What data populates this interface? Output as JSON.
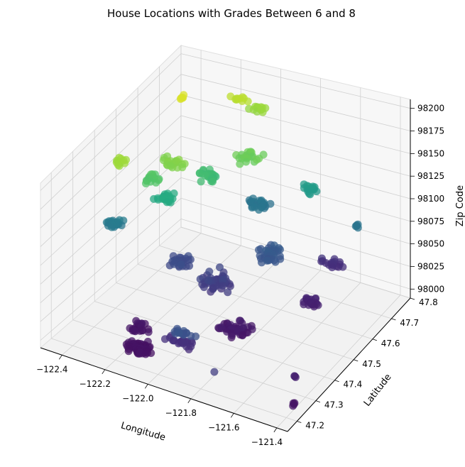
{
  "chart_data": {
    "type": "scatter",
    "projection": "3d",
    "title": "House Locations with Grades Between 6 and 8",
    "xlabel": "Longitude",
    "ylabel": "Latitude",
    "zlabel": "Zip Code",
    "xlim": [
      -122.5,
      -121.35
    ],
    "ylim": [
      47.15,
      47.8
    ],
    "zlim": [
      97990,
      98210
    ],
    "x_ticks": [
      "−122.4",
      "−122.2",
      "−122.0",
      "−121.8",
      "−121.6",
      "−121.4"
    ],
    "y_ticks": [
      "47.2",
      "47.3",
      "47.4",
      "47.5",
      "47.6",
      "47.7",
      "47.8"
    ],
    "z_ticks": [
      "98000",
      "98025",
      "98050",
      "98075",
      "98100",
      "98125",
      "98150",
      "98175",
      "98200"
    ],
    "grid": true,
    "colormap": "viridis",
    "color_by": "zip code",
    "colors": {
      "low": "#440154",
      "mid": "#21918c",
      "high": "#fde725"
    },
    "clusters": [
      {
        "x": -122.33,
        "y": 47.64,
        "z": 98198,
        "n": 6,
        "sx": 0.02,
        "sy": 0.02,
        "sz": 2
      },
      {
        "x": -122.13,
        "y": 47.72,
        "z": 98188,
        "n": 10,
        "sx": 0.06,
        "sy": 0.02,
        "sz": 3
      },
      {
        "x": -122.05,
        "y": 47.74,
        "z": 98176,
        "n": 14,
        "sx": 0.06,
        "sy": 0.02,
        "sz": 3
      },
      {
        "x": -122.38,
        "y": 47.4,
        "z": 98178,
        "n": 12,
        "sx": 0.05,
        "sy": 0.02,
        "sz": 2
      },
      {
        "x": -122.2,
        "y": 47.48,
        "z": 98168,
        "n": 22,
        "sx": 0.08,
        "sy": 0.03,
        "sz": 4
      },
      {
        "x": -122.28,
        "y": 47.45,
        "z": 98150,
        "n": 18,
        "sx": 0.05,
        "sy": 0.03,
        "sz": 4
      },
      {
        "x": -121.95,
        "y": 47.6,
        "z": 98160,
        "n": 22,
        "sx": 0.06,
        "sy": 0.04,
        "sz": 5
      },
      {
        "x": -122.1,
        "y": 47.55,
        "z": 98140,
        "n": 26,
        "sx": 0.08,
        "sy": 0.04,
        "sz": 5
      },
      {
        "x": -122.22,
        "y": 47.47,
        "z": 98125,
        "n": 22,
        "sx": 0.07,
        "sy": 0.03,
        "sz": 4
      },
      {
        "x": -121.75,
        "y": 47.7,
        "z": 98110,
        "n": 18,
        "sx": 0.06,
        "sy": 0.02,
        "sz": 3
      },
      {
        "x": -122.45,
        "y": 47.45,
        "z": 98080,
        "n": 24,
        "sx": 0.06,
        "sy": 0.03,
        "sz": 5
      },
      {
        "x": -122.0,
        "y": 47.7,
        "z": 98075,
        "n": 28,
        "sx": 0.08,
        "sy": 0.03,
        "sz": 4
      },
      {
        "x": -121.85,
        "y": 47.6,
        "z": 98050,
        "n": 36,
        "sx": 0.08,
        "sy": 0.05,
        "sz": 8
      },
      {
        "x": -122.2,
        "y": 47.5,
        "z": 98040,
        "n": 28,
        "sx": 0.07,
        "sy": 0.04,
        "sz": 6
      },
      {
        "x": -122.02,
        "y": 47.5,
        "z": 98030,
        "n": 44,
        "sx": 0.1,
        "sy": 0.06,
        "sz": 10
      },
      {
        "x": -121.68,
        "y": 47.74,
        "z": 98020,
        "n": 18,
        "sx": 0.08,
        "sy": 0.02,
        "sz": 6
      },
      {
        "x": -121.65,
        "y": 47.6,
        "z": 98010,
        "n": 22,
        "sx": 0.06,
        "sy": 0.03,
        "sz": 5
      },
      {
        "x": -121.85,
        "y": 47.42,
        "z": 98005,
        "n": 44,
        "sx": 0.1,
        "sy": 0.05,
        "sz": 6
      },
      {
        "x": -122.2,
        "y": 47.32,
        "z": 98003,
        "n": 26,
        "sx": 0.06,
        "sy": 0.03,
        "sz": 3
      },
      {
        "x": -122.14,
        "y": 47.25,
        "z": 98001,
        "n": 60,
        "sx": 0.08,
        "sy": 0.04,
        "sz": 2
      },
      {
        "x": -121.95,
        "y": 47.26,
        "z": 98020,
        "n": 22,
        "sx": 0.08,
        "sy": 0.03,
        "sz": 5
      },
      {
        "x": -121.9,
        "y": 47.22,
        "z": 98045,
        "n": 16,
        "sx": 0.06,
        "sy": 0.02,
        "sz": 4
      },
      {
        "x": -121.55,
        "y": 47.72,
        "z": 98075,
        "n": 5,
        "sx": 0.02,
        "sy": 0.02,
        "sz": 2
      },
      {
        "x": -121.45,
        "y": 47.3,
        "z": 98010,
        "n": 3,
        "sx": 0.01,
        "sy": 0.01,
        "sz": 1
      },
      {
        "x": -121.38,
        "y": 47.22,
        "z": 98002,
        "n": 4,
        "sx": 0.02,
        "sy": 0.02,
        "sz": 1
      },
      {
        "x": -121.7,
        "y": 47.16,
        "z": 98030,
        "n": 1,
        "sx": 0.0,
        "sy": 0.0,
        "sz": 0
      }
    ]
  }
}
